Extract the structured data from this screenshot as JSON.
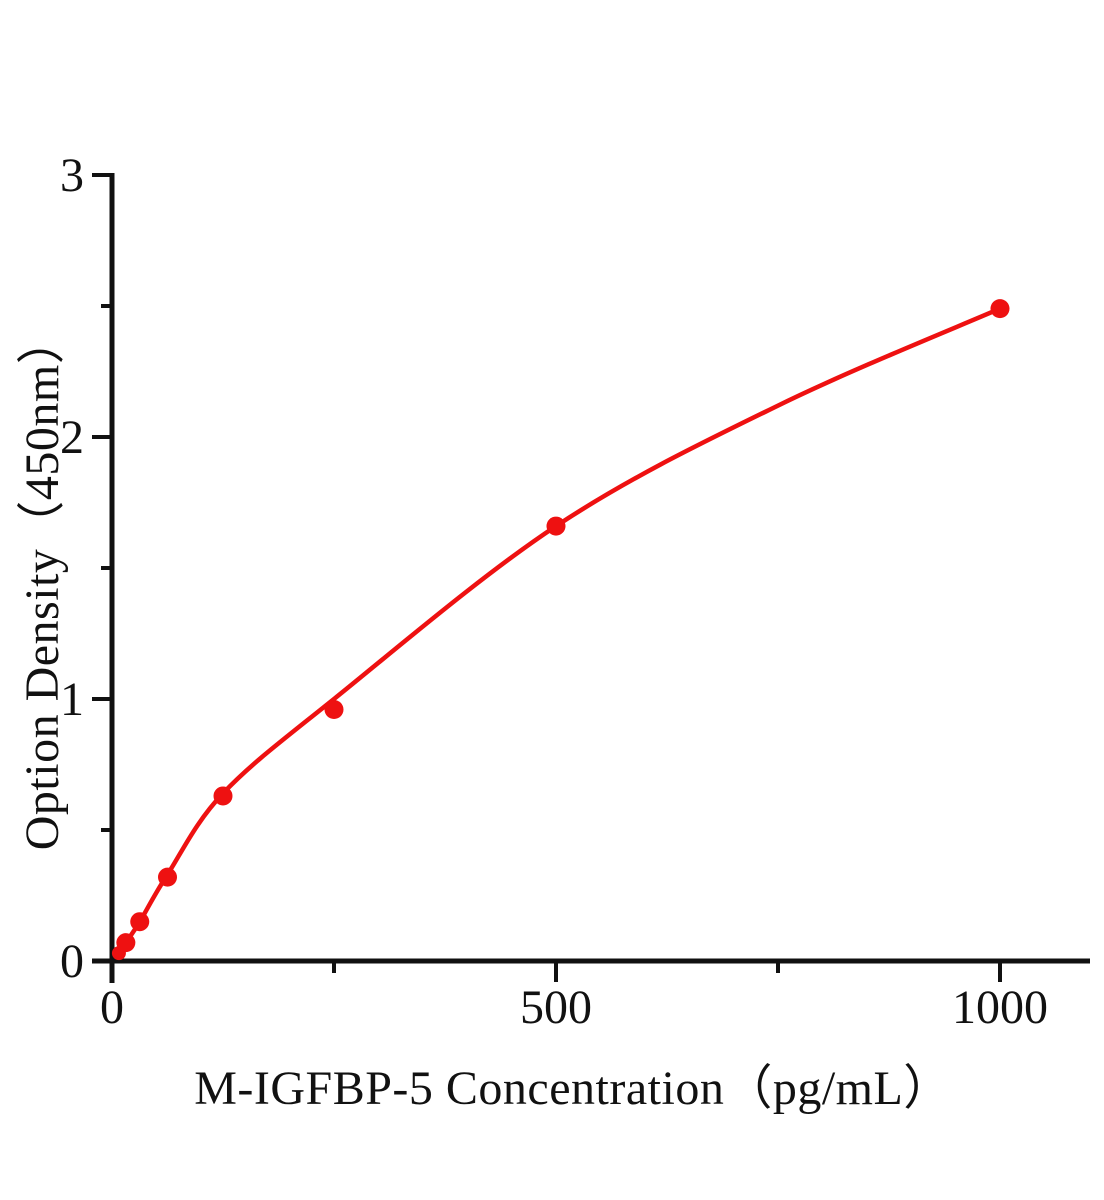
{
  "figure": {
    "background": "#ffffff"
  },
  "chart_data": {
    "type": "scatter",
    "title": "",
    "xlabel": "M-IGFBP-5 Concentration（pg/mL）",
    "ylabel": "Option Density（450nm）",
    "x": [
      7.8,
      15.6,
      31.25,
      62.5,
      125,
      250,
      500,
      1000
    ],
    "y": [
      0.03,
      0.07,
      0.15,
      0.32,
      0.63,
      0.96,
      1.66,
      2.49
    ],
    "fit_curve_points": [
      [
        7.8,
        0.03
      ],
      [
        15.6,
        0.07
      ],
      [
        31.25,
        0.15
      ],
      [
        62.5,
        0.33
      ],
      [
        125,
        0.64
      ],
      [
        250,
        1.0
      ],
      [
        500,
        1.66
      ],
      [
        750,
        2.12
      ],
      [
        1000,
        2.49
      ]
    ],
    "xlim": [
      0,
      1100
    ],
    "ylim": [
      0,
      3
    ],
    "x_major_ticks": {
      "values": [
        0,
        500,
        1000
      ],
      "labels": [
        "0",
        "500",
        "1000"
      ]
    },
    "x_minor_ticks": [
      250,
      750
    ],
    "y_major_ticks": {
      "values": [
        0,
        1,
        2,
        3
      ],
      "labels": [
        "0",
        "1",
        "2",
        "3"
      ]
    },
    "y_minor_ticks": [
      0.5,
      1.5,
      2.5
    ],
    "grid": "off",
    "legend": "none",
    "marker": "circle",
    "marker_color": "#ee1111",
    "line_color": "#ee1111",
    "axis_color": "#111111"
  }
}
